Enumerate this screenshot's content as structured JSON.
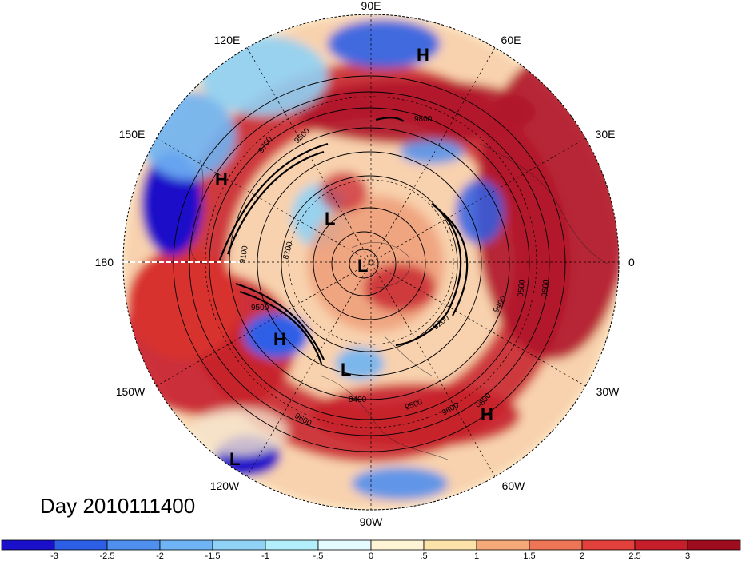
{
  "title": "Day 2010111400",
  "map": {
    "projection": "north-polar-stereographic",
    "longitude_labels": {
      "top": "90E",
      "top_right_a": "60E",
      "top_right_b": "30E",
      "right": "0",
      "bottom_right_b": "30W",
      "bottom_right_a": "60W",
      "bottom": "90W",
      "bottom_left_a": "120W",
      "bottom_left_b": "150W",
      "left": "180",
      "top_left_b": "150E",
      "top_left_a": "120E"
    },
    "pressure_centers": [
      {
        "label": "H"
      },
      {
        "label": "H"
      },
      {
        "label": "H"
      },
      {
        "label": "H"
      },
      {
        "label": "L"
      },
      {
        "label": "L"
      },
      {
        "label": "L"
      },
      {
        "label": "L"
      }
    ],
    "contour_labels": [
      "9800",
      "9700",
      "9500",
      "9500",
      "8700",
      "9100",
      "9200",
      "9400",
      "9600",
      "9500",
      "9600",
      "9800",
      "9400",
      "9500",
      "9600"
    ]
  },
  "colorbar": {
    "ticks": [
      "-3",
      "-2.5",
      "-2",
      "-1.5",
      "-1",
      "-.5",
      "0",
      ".5",
      "1",
      "1.5",
      "2",
      "2.5",
      "3"
    ],
    "colors": [
      "#1b10c9",
      "#2d5fe6",
      "#4f8fee",
      "#6fb4f4",
      "#8fd2f6",
      "#b3eefb",
      "#e6fbfd",
      "#fff5d6",
      "#fce3a9",
      "#f5a878",
      "#ee7656",
      "#e2403b",
      "#c71e2c",
      "#9e0d1f"
    ]
  }
}
